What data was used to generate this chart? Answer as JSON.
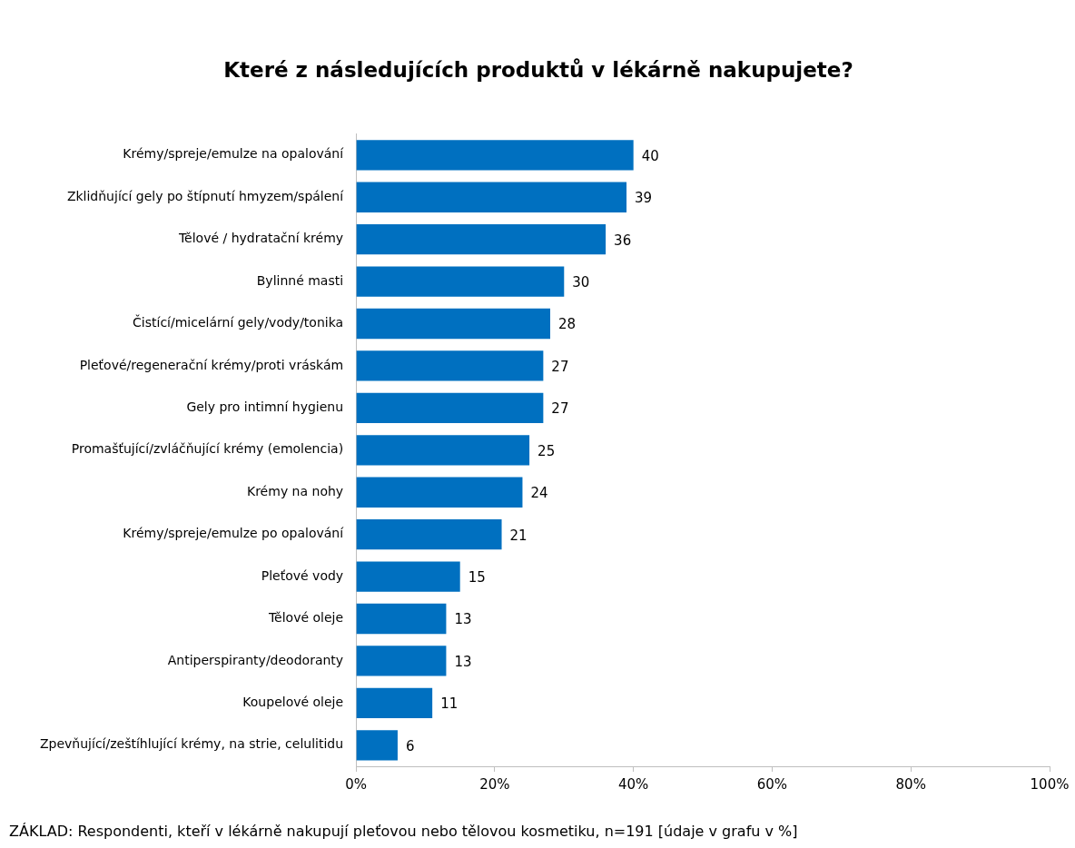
{
  "chart_data": {
    "type": "bar",
    "orientation": "horizontal",
    "title": "Které z následujících produktů v lékárně nakupujete?",
    "categories": [
      "Krémy/spreje/emulze na opalování",
      "Zklidňující gely po štípnutí hmyzem/spálení",
      "Tělové / hydratační krémy",
      "Bylinné masti",
      "Čistící/micelární gely/vody/tonika",
      "Pleťové/regenerační krémy/proti vráskám",
      "Gely pro intimní hygienu",
      "Promašťující/zvláčňující krémy (emolencia)",
      "Krémy na nohy",
      "Krémy/spreje/emulze po opalování",
      "Pleťové vody",
      "Tělové oleje",
      "Antiperspiranty/deodoranty",
      "Koupelové oleje",
      "Zpevňující/zeštíhlující krémy, na strie, celulitidu"
    ],
    "values": [
      40,
      39,
      36,
      30,
      28,
      27,
      27,
      25,
      24,
      21,
      15,
      13,
      13,
      11,
      6
    ],
    "color": "#0070c0",
    "data_labels": true,
    "xlim": [
      0,
      100
    ],
    "xticks": [
      {
        "value": 0,
        "label": "0%"
      },
      {
        "value": 20,
        "label": "20%"
      },
      {
        "value": 40,
        "label": "40%"
      },
      {
        "value": 60,
        "label": "60%"
      },
      {
        "value": 80,
        "label": "80%"
      },
      {
        "value": 100,
        "label": "100%"
      }
    ],
    "grid": false,
    "legend": false,
    "annotations": [
      "ZÁKLAD: Respondenti, kteří v lékárně nakupují pleťovou nebo tělovou kosmetiku, n=191 [údaje v grafu v %]"
    ]
  }
}
